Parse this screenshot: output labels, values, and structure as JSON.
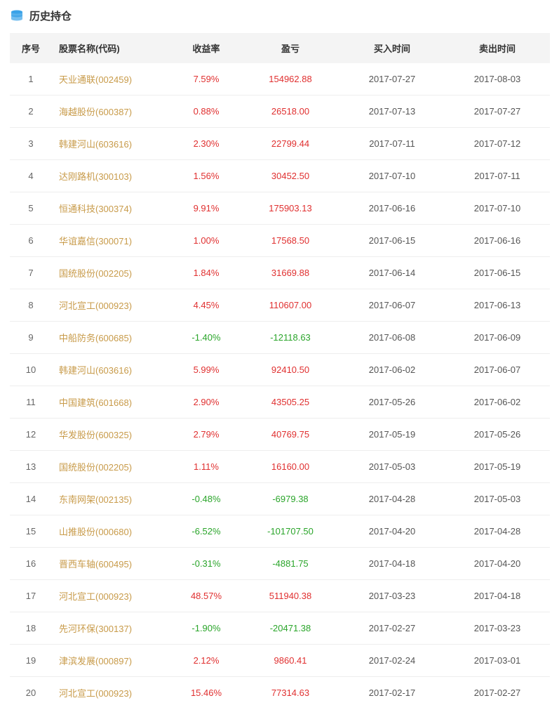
{
  "header": {
    "title": "历史持仓",
    "icon_color": "#3aa2e8"
  },
  "table": {
    "columns": [
      "序号",
      "股票名称(代码)",
      "收益率",
      "盈亏",
      "买入时间",
      "卖出时间"
    ],
    "colors": {
      "positive": "#e03030",
      "negative": "#2aa52a",
      "link": "#c89b4a",
      "header_bg": "#f4f4f4",
      "border": "#eeeeee"
    },
    "rows": [
      {
        "idx": "1",
        "name": "天业通联(002459)",
        "rate": "7.59%",
        "pl": "154962.88",
        "buy": "2017-07-27",
        "sell": "2017-08-03",
        "pos": true
      },
      {
        "idx": "2",
        "name": "海越股份(600387)",
        "rate": "0.88%",
        "pl": "26518.00",
        "buy": "2017-07-13",
        "sell": "2017-07-27",
        "pos": true
      },
      {
        "idx": "3",
        "name": "韩建河山(603616)",
        "rate": "2.30%",
        "pl": "22799.44",
        "buy": "2017-07-11",
        "sell": "2017-07-12",
        "pos": true
      },
      {
        "idx": "4",
        "name": "达刚路机(300103)",
        "rate": "1.56%",
        "pl": "30452.50",
        "buy": "2017-07-10",
        "sell": "2017-07-11",
        "pos": true
      },
      {
        "idx": "5",
        "name": "恒通科技(300374)",
        "rate": "9.91%",
        "pl": "175903.13",
        "buy": "2017-06-16",
        "sell": "2017-07-10",
        "pos": true
      },
      {
        "idx": "6",
        "name": "华谊嘉信(300071)",
        "rate": "1.00%",
        "pl": "17568.50",
        "buy": "2017-06-15",
        "sell": "2017-06-16",
        "pos": true
      },
      {
        "idx": "7",
        "name": "国统股份(002205)",
        "rate": "1.84%",
        "pl": "31669.88",
        "buy": "2017-06-14",
        "sell": "2017-06-15",
        "pos": true
      },
      {
        "idx": "8",
        "name": "河北宣工(000923)",
        "rate": "4.45%",
        "pl": "110607.00",
        "buy": "2017-06-07",
        "sell": "2017-06-13",
        "pos": true
      },
      {
        "idx": "9",
        "name": "中船防务(600685)",
        "rate": "-1.40%",
        "pl": "-12118.63",
        "buy": "2017-06-08",
        "sell": "2017-06-09",
        "pos": false
      },
      {
        "idx": "10",
        "name": "韩建河山(603616)",
        "rate": "5.99%",
        "pl": "92410.50",
        "buy": "2017-06-02",
        "sell": "2017-06-07",
        "pos": true
      },
      {
        "idx": "11",
        "name": "中国建筑(601668)",
        "rate": "2.90%",
        "pl": "43505.25",
        "buy": "2017-05-26",
        "sell": "2017-06-02",
        "pos": true
      },
      {
        "idx": "12",
        "name": "华发股份(600325)",
        "rate": "2.79%",
        "pl": "40769.75",
        "buy": "2017-05-19",
        "sell": "2017-05-26",
        "pos": true
      },
      {
        "idx": "13",
        "name": "国统股份(002205)",
        "rate": "1.11%",
        "pl": "16160.00",
        "buy": "2017-05-03",
        "sell": "2017-05-19",
        "pos": true
      },
      {
        "idx": "14",
        "name": "东南网架(002135)",
        "rate": "-0.48%",
        "pl": "-6979.38",
        "buy": "2017-04-28",
        "sell": "2017-05-03",
        "pos": false
      },
      {
        "idx": "15",
        "name": "山推股份(000680)",
        "rate": "-6.52%",
        "pl": "-101707.50",
        "buy": "2017-04-20",
        "sell": "2017-04-28",
        "pos": false
      },
      {
        "idx": "16",
        "name": "晋西车轴(600495)",
        "rate": "-0.31%",
        "pl": "-4881.75",
        "buy": "2017-04-18",
        "sell": "2017-04-20",
        "pos": false
      },
      {
        "idx": "17",
        "name": "河北宣工(000923)",
        "rate": "48.57%",
        "pl": "511940.38",
        "buy": "2017-03-23",
        "sell": "2017-04-18",
        "pos": true
      },
      {
        "idx": "18",
        "name": "先河环保(300137)",
        "rate": "-1.90%",
        "pl": "-20471.38",
        "buy": "2017-02-27",
        "sell": "2017-03-23",
        "pos": false
      },
      {
        "idx": "19",
        "name": "津滨发展(000897)",
        "rate": "2.12%",
        "pl": "9860.41",
        "buy": "2017-02-24",
        "sell": "2017-03-01",
        "pos": true
      },
      {
        "idx": "20",
        "name": "河北宣工(000923)",
        "rate": "15.46%",
        "pl": "77314.63",
        "buy": "2017-02-17",
        "sell": "2017-02-27",
        "pos": true
      }
    ]
  }
}
